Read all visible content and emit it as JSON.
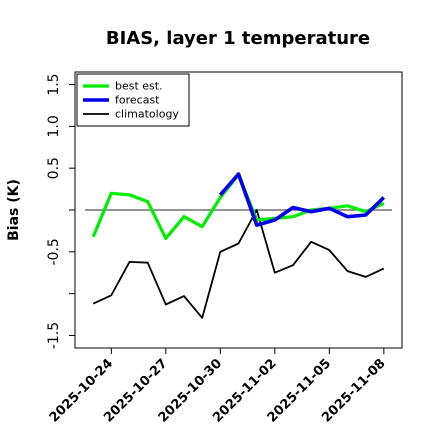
{
  "chart_data": {
    "type": "line",
    "title": "BIAS, layer 1 temperature",
    "xlabel": "",
    "ylabel": "Bias (K)",
    "x": [
      "2025-10-23",
      "2025-10-24",
      "2025-10-25",
      "2025-10-26",
      "2025-10-27",
      "2025-10-28",
      "2025-10-29",
      "2025-10-30",
      "2025-10-31",
      "2025-11-01",
      "2025-11-02",
      "2025-11-03",
      "2025-11-04",
      "2025-11-05",
      "2025-11-06",
      "2025-11-07",
      "2025-11-08"
    ],
    "xlim": [
      "2025-10-22",
      "2025-11-09"
    ],
    "ylim": [
      -1.65,
      1.65
    ],
    "yticks": [
      -1.5,
      -1.0,
      -0.5,
      0.0,
      0.5,
      1.0,
      1.5
    ],
    "ytick_labels": [
      "-1.5",
      "",
      "-0.5",
      "",
      "0.5",
      "1.0",
      "1.5"
    ],
    "xticks": [
      "2025-10-24",
      "2025-10-27",
      "2025-10-30",
      "2025-11-02",
      "2025-11-05",
      "2025-11-08"
    ],
    "xtick_colors": [
      "#000000",
      "#000000",
      "#228b22",
      "#000000",
      "#000000",
      "#000000"
    ],
    "reference_line": 0.0,
    "grid": false,
    "legend_position": "top-left",
    "series": [
      {
        "name": "best est.",
        "color": "#00ee00",
        "values": [
          -0.32,
          0.2,
          0.18,
          0.1,
          -0.34,
          -0.08,
          -0.2,
          0.15,
          0.42,
          -0.12,
          -0.1,
          -0.08,
          0.0,
          0.02,
          0.05,
          -0.02,
          0.08
        ]
      },
      {
        "name": "forecast",
        "color": "#0000ee",
        "values": [
          null,
          null,
          null,
          null,
          null,
          null,
          null,
          0.18,
          0.43,
          -0.18,
          -0.12,
          0.03,
          -0.02,
          0.02,
          -0.08,
          -0.06,
          0.15
        ]
      },
      {
        "name": "climatology",
        "color": "#000000",
        "values": [
          -1.12,
          -1.02,
          -0.62,
          -0.63,
          -1.13,
          -1.03,
          -1.29,
          -0.5,
          -0.4,
          0.0,
          -0.75,
          -0.66,
          -0.38,
          -0.48,
          -0.73,
          -0.8,
          -0.7
        ]
      }
    ]
  }
}
